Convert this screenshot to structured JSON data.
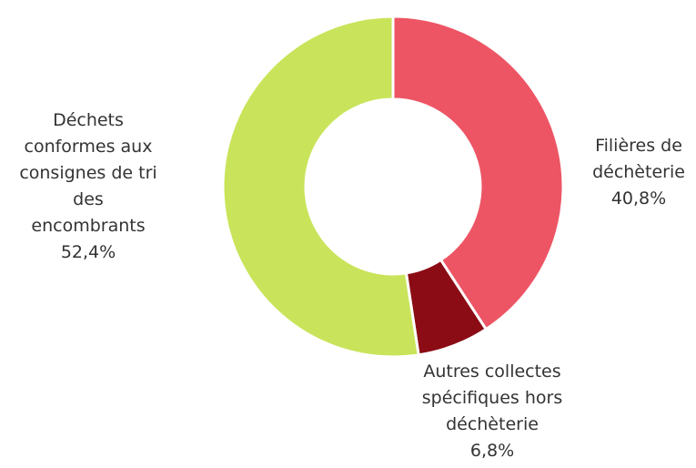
{
  "chart_data": {
    "type": "pie",
    "title": "",
    "donut": true,
    "start_angle_deg": 0,
    "direction": "clockwise",
    "slices": [
      {
        "label_lines": [
          "Filières de",
          "déchèterie"
        ],
        "value_text": "40,8%",
        "value": 40.8,
        "color": "#ed5565"
      },
      {
        "label_lines": [
          "Autres collectes",
          "spécifiques hors",
          "déchèterie"
        ],
        "value_text": "6,8%",
        "value": 6.8,
        "color": "#8b0c14"
      },
      {
        "label_lines": [
          "Déchets",
          "conformes aux",
          "consignes de tri",
          "des",
          "encombrants"
        ],
        "value_text": "52,4%",
        "value": 52.4,
        "color": "#c9e45a"
      }
    ],
    "legend": "none"
  }
}
